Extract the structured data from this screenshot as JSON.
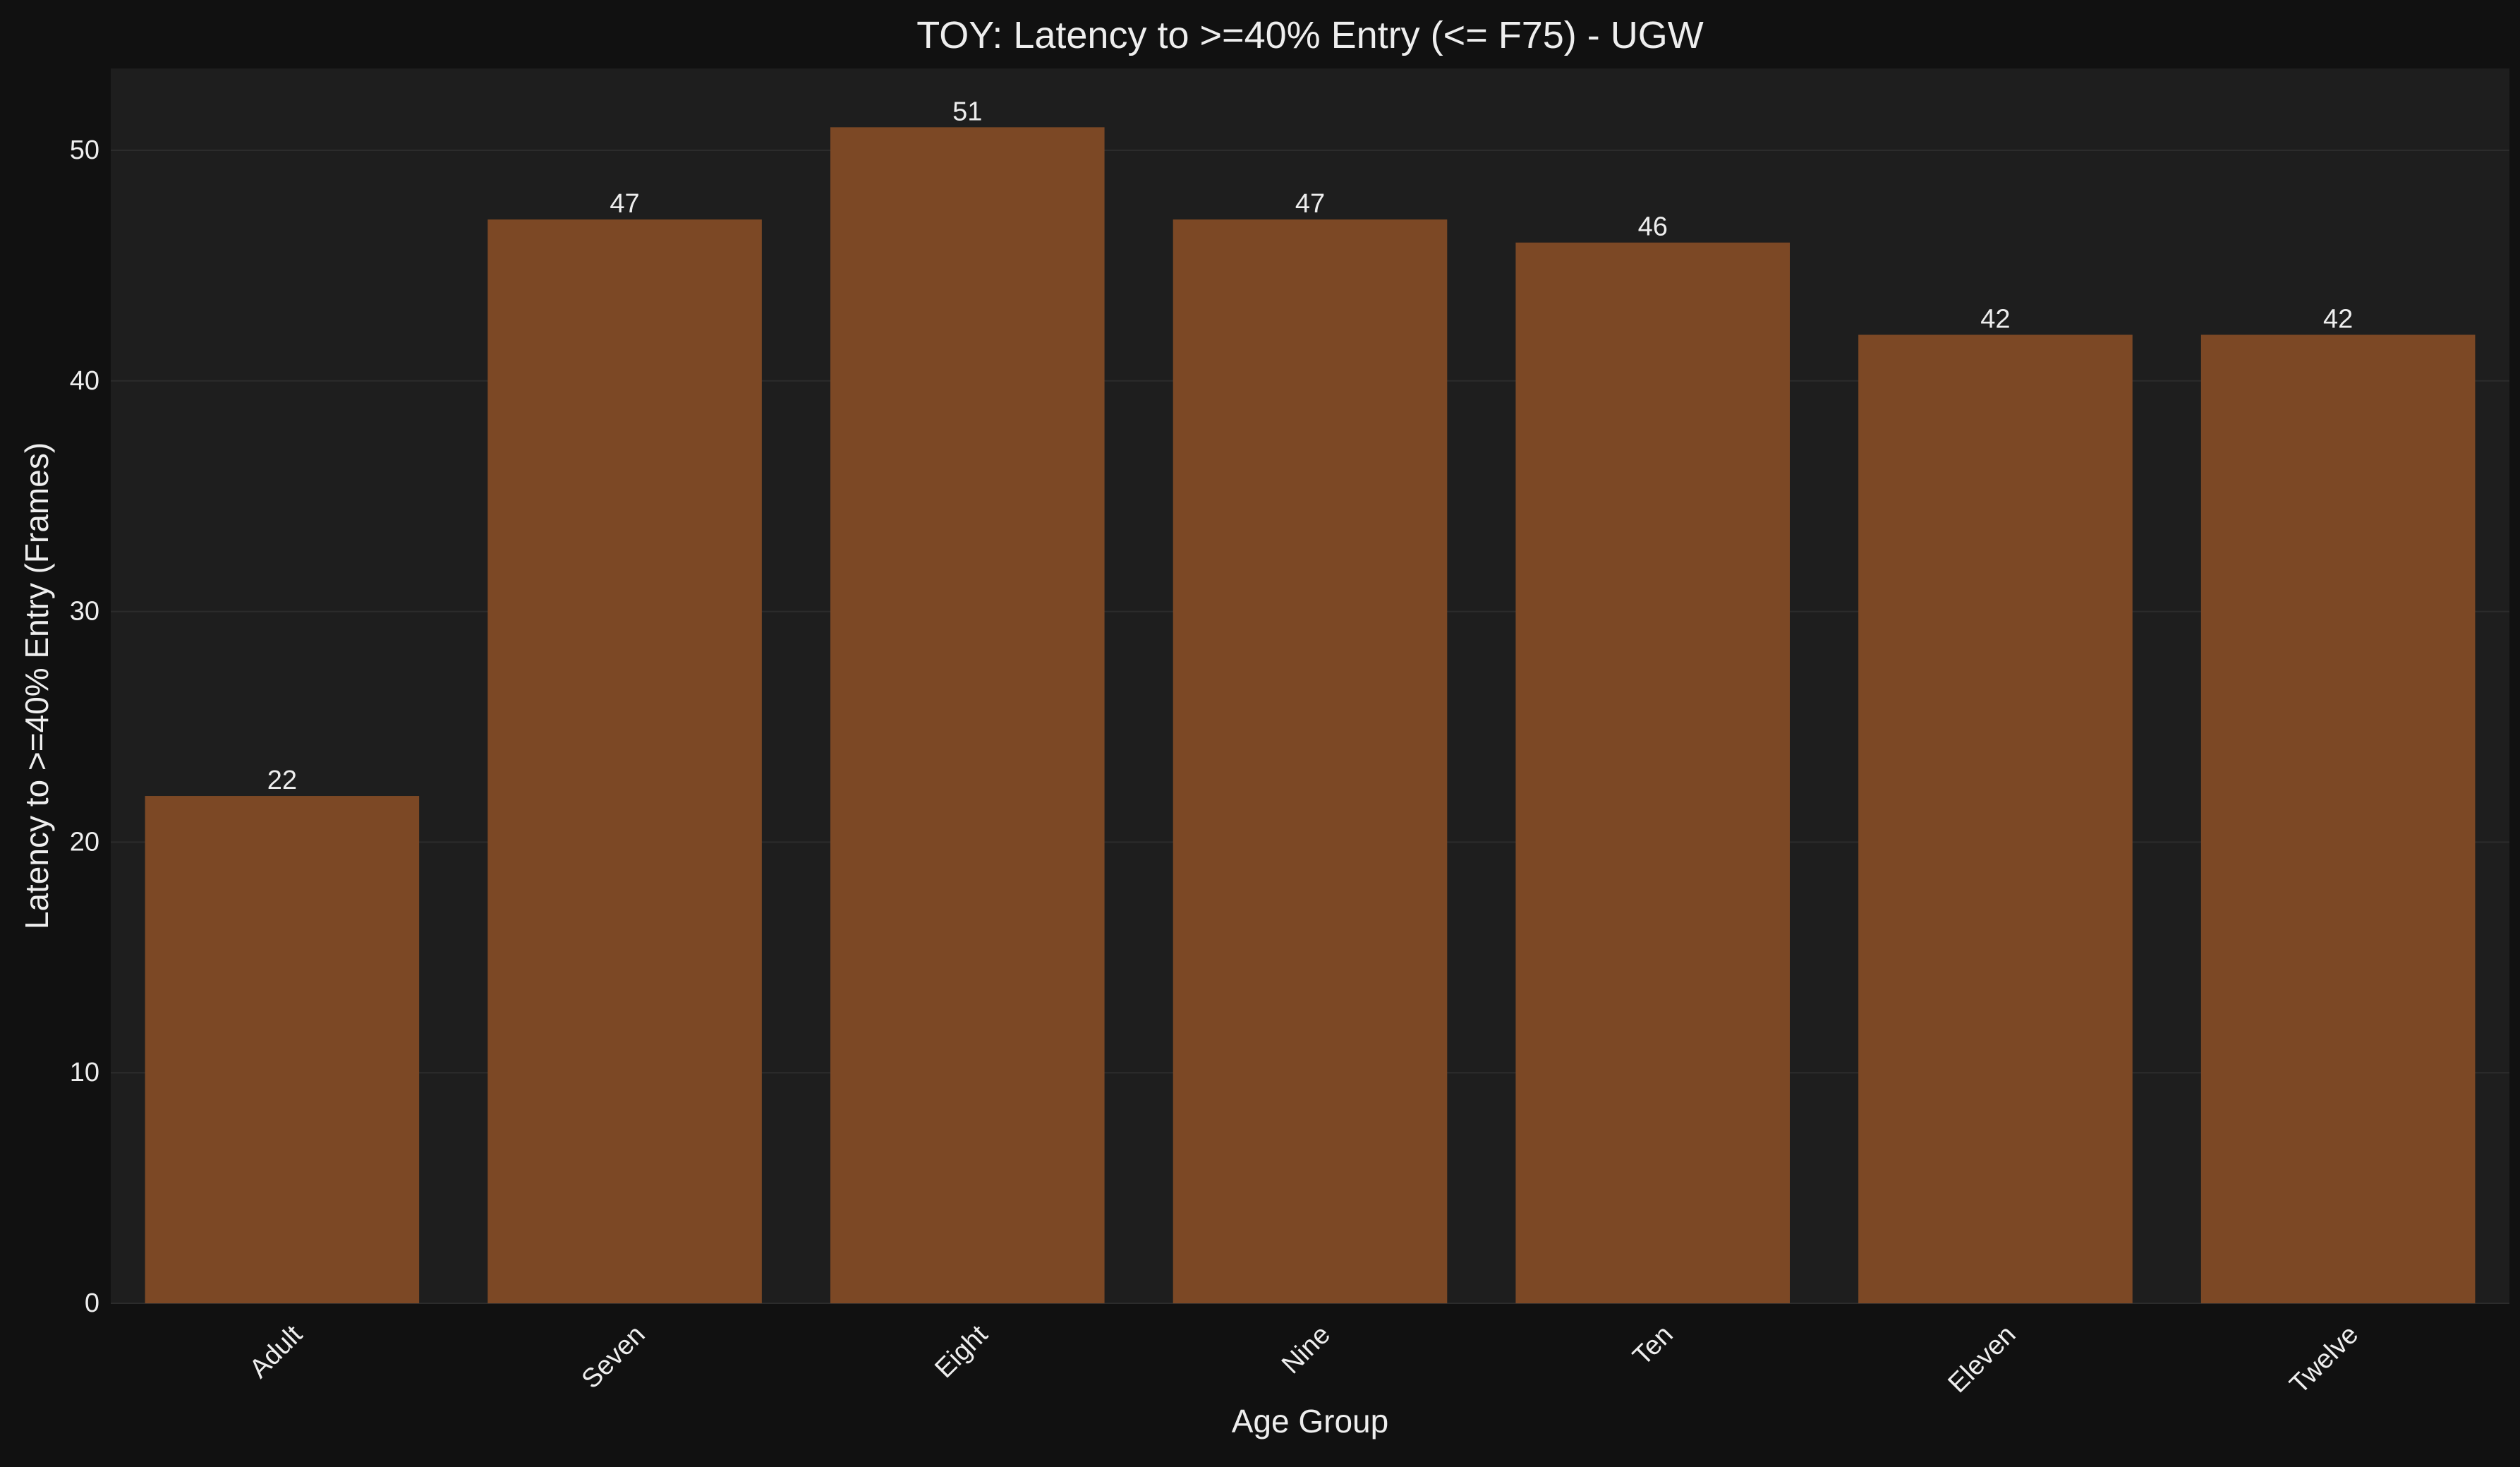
{
  "chart_data": {
    "type": "bar",
    "title": "TOY: Latency to >=40% Entry (<= F75) - UGW",
    "xlabel": "Age Group",
    "ylabel": "Latency to >=40% Entry (Frames)",
    "categories": [
      "Adult",
      "Seven",
      "Eight",
      "Nine",
      "Ten",
      "Eleven",
      "Twelve"
    ],
    "values": [
      22,
      47,
      51,
      47,
      46,
      42,
      42
    ],
    "value_labels": [
      "22",
      "47",
      "51",
      "47",
      "46",
      "42",
      "42"
    ],
    "ylim": [
      0,
      53.55
    ],
    "yticks": [
      0,
      10,
      20,
      30,
      40,
      50
    ],
    "ytick_labels": [
      "0",
      "10",
      "20",
      "30",
      "40",
      "50"
    ],
    "grid": true,
    "legend": "none"
  },
  "colors": {
    "figure_background": "#111111",
    "plot_background": "#1e1e1e",
    "bar_fill": "#7c4825",
    "grid": "#2c2c2c",
    "text": "#eeeeee"
  }
}
